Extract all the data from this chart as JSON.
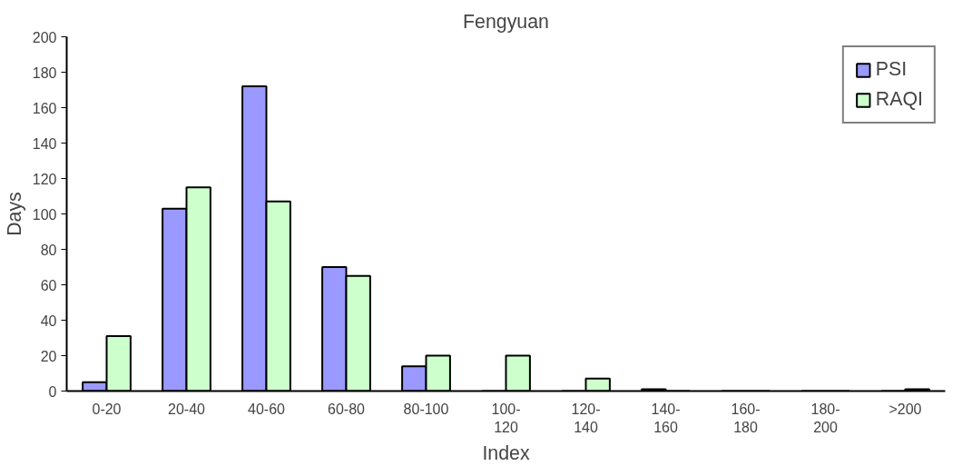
{
  "chart_data": {
    "type": "bar",
    "title": "Fengyuan",
    "xlabel": "Index",
    "ylabel": "Days",
    "categories": [
      "0-20",
      "20-40",
      "40-60",
      "60-80",
      "80-100",
      "100-120",
      "120-140",
      "140-160",
      "160-180",
      "180-200",
      ">200"
    ],
    "series": [
      {
        "name": "PSI",
        "color": "#9999ff",
        "values": [
          5,
          103,
          172,
          70,
          14,
          0,
          0,
          1,
          0,
          0,
          0
        ]
      },
      {
        "name": "RAQI",
        "color": "#ccffcc",
        "values": [
          31,
          115,
          107,
          65,
          20,
          20,
          7,
          0,
          0,
          0,
          1
        ]
      }
    ],
    "ylim": [
      0,
      200
    ],
    "yticks": [
      0,
      20,
      40,
      60,
      80,
      100,
      120,
      140,
      160,
      180,
      200
    ],
    "grid": false,
    "legend": "top right"
  }
}
